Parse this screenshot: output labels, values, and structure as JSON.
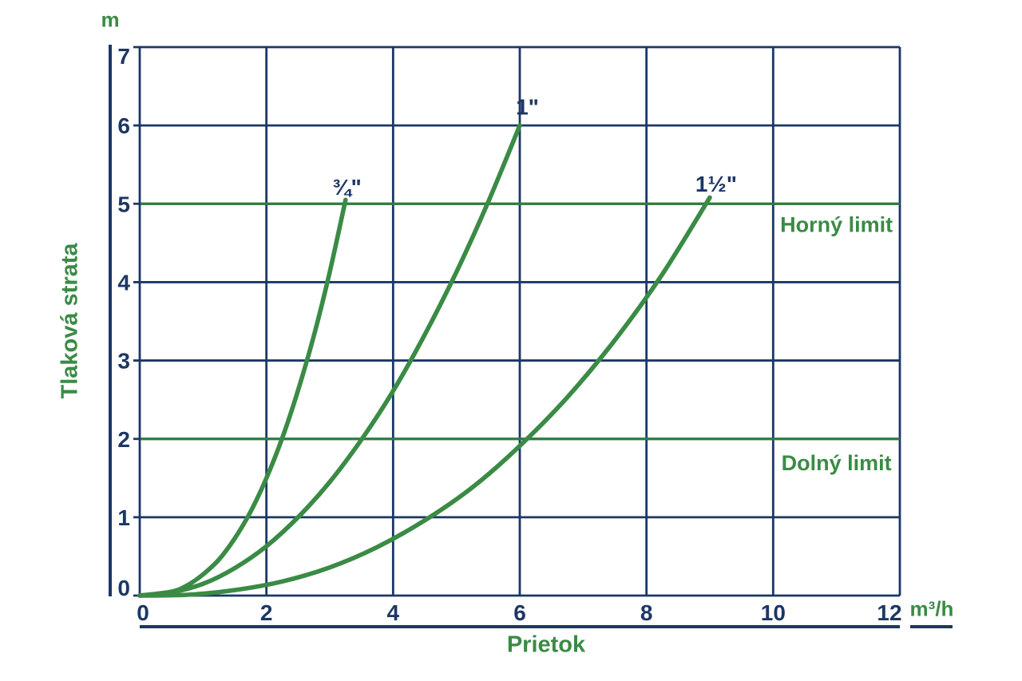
{
  "chart_data": {
    "type": "line",
    "title": "",
    "xlabel": "Prietok",
    "ylabel": "Tlaková strata",
    "x_unit": "m³/h",
    "y_unit": "m",
    "xlim": [
      0,
      12
    ],
    "ylim": [
      0,
      7
    ],
    "x_ticks": [
      "0",
      "2",
      "4",
      "6",
      "8",
      "10",
      "12"
    ],
    "y_ticks": [
      "0",
      "1",
      "2",
      "3",
      "4",
      "5",
      "6",
      "7"
    ],
    "grid": true,
    "legend_position": "none",
    "series": [
      {
        "name": "¾\"",
        "label_pos": {
          "x": 3.27,
          "y": 5.22
        },
        "points": [
          [
            0,
            0
          ],
          [
            0.5,
            0.05
          ],
          [
            0.75,
            0.13
          ],
          [
            1,
            0.27
          ],
          [
            1.25,
            0.46
          ],
          [
            1.5,
            0.73
          ],
          [
            1.75,
            1.07
          ],
          [
            2,
            1.5
          ],
          [
            2.25,
            2.01
          ],
          [
            2.5,
            2.62
          ],
          [
            2.75,
            3.32
          ],
          [
            3,
            4.13
          ],
          [
            3.25,
            5.05
          ]
        ]
      },
      {
        "name": "1\"",
        "label_pos": {
          "x": 6.12,
          "y": 6.24
        },
        "points": [
          [
            0,
            0
          ],
          [
            0.5,
            0.04
          ],
          [
            1,
            0.15
          ],
          [
            1.5,
            0.35
          ],
          [
            2,
            0.63
          ],
          [
            2.5,
            1.0
          ],
          [
            3,
            1.45
          ],
          [
            3.5,
            1.99
          ],
          [
            4,
            2.61
          ],
          [
            4.5,
            3.33
          ],
          [
            5,
            4.13
          ],
          [
            5.5,
            5.02
          ],
          [
            6,
            6.0
          ]
        ]
      },
      {
        "name": "1½\"",
        "label_pos": {
          "x": 9.1,
          "y": 5.26
        },
        "points": [
          [
            0,
            0
          ],
          [
            0.75,
            0.01
          ],
          [
            1.5,
            0.07
          ],
          [
            2.25,
            0.18
          ],
          [
            3,
            0.36
          ],
          [
            3.75,
            0.62
          ],
          [
            4.5,
            0.96
          ],
          [
            5.25,
            1.38
          ],
          [
            6,
            1.91
          ],
          [
            6.75,
            2.53
          ],
          [
            7.5,
            3.26
          ],
          [
            8.25,
            4.1
          ],
          [
            9,
            5.08
          ]
        ]
      }
    ],
    "reference_lines": [
      {
        "label": "Horný limit",
        "y": 5,
        "label_pos": {
          "x": 11.0,
          "y": 4.74
        }
      },
      {
        "label": "Dolný limit",
        "y": 2,
        "label_pos": {
          "x": 11.0,
          "y": 1.7
        }
      }
    ]
  },
  "colors": {
    "navy": "#1c3766",
    "green": "#3a8b45",
    "limit_green": "#2f7c3e",
    "background": "#ffffff"
  }
}
